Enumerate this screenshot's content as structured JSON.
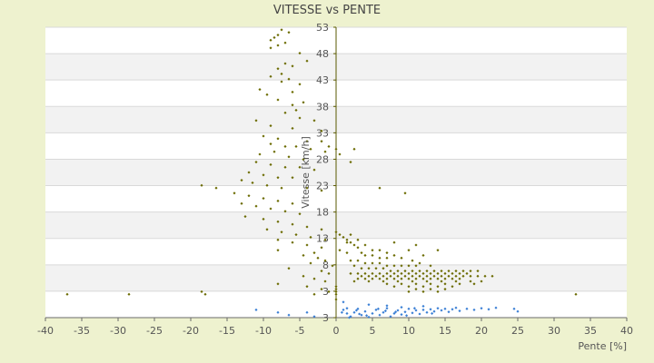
{
  "chart_data": {
    "type": "scatter",
    "title": "VITESSE vs PENTE",
    "xlabel": "Pente [%]",
    "ylabel": "Vitesse [km/h]",
    "xlim": [
      -40,
      40
    ],
    "ylim": [
      -2,
      54
    ],
    "x_ticks": [
      "-40",
      "-35",
      "-30",
      "-25",
      "-20",
      "-15",
      "-10",
      "-5",
      "0",
      "5",
      "10",
      "15",
      "20",
      "25",
      "30",
      "35",
      "40"
    ],
    "y_ticks": [
      "3",
      "3",
      "8",
      "13",
      "18",
      "23",
      "28",
      "33",
      "38",
      "43",
      "48",
      "53"
    ],
    "grid": true,
    "legend": "none",
    "colors": {
      "series_main": "#6b6b00",
      "series_neg": "#3a7fd5",
      "band": "#f2f2f2",
      "plot_bg": "#ffffff",
      "page_bg": "#eef2cf"
    },
    "series": [
      {
        "color": "series_main",
        "points": [
          [
            -37,
            2.5
          ],
          [
            -28.5,
            2.5
          ],
          [
            -18.5,
            3
          ],
          [
            -18,
            2.5
          ],
          [
            -7.5,
            53.5
          ],
          [
            -6.5,
            53
          ],
          [
            -8,
            52.5
          ],
          [
            -8.5,
            52
          ],
          [
            -9,
            51.5
          ],
          [
            -7,
            51
          ],
          [
            -8,
            50.5
          ],
          [
            -9,
            50
          ],
          [
            -5,
            49
          ],
          [
            -4,
            47.5
          ],
          [
            -7,
            47
          ],
          [
            -6,
            46.5
          ],
          [
            -8,
            46
          ],
          [
            -7.5,
            45
          ],
          [
            -9,
            44.5
          ],
          [
            -6.5,
            44
          ],
          [
            -7.5,
            43.5
          ],
          [
            -5,
            43
          ],
          [
            -10.5,
            42
          ],
          [
            -6,
            41.5
          ],
          [
            -9.5,
            41
          ],
          [
            -8,
            40
          ],
          [
            -4.5,
            39.5
          ],
          [
            -6,
            39
          ],
          [
            -5.5,
            38
          ],
          [
            -7,
            37.5
          ],
          [
            -11,
            36
          ],
          [
            -5,
            36.5
          ],
          [
            -3,
            36
          ],
          [
            -9,
            35
          ],
          [
            -6,
            34.5
          ],
          [
            -2,
            34
          ],
          [
            -10,
            33
          ],
          [
            -8,
            32.5
          ],
          [
            -4,
            32
          ],
          [
            -9,
            31.5
          ],
          [
            -7,
            31
          ],
          [
            -5.5,
            31
          ],
          [
            -3.5,
            30.5
          ],
          [
            -1.5,
            30
          ],
          [
            -8.5,
            30
          ],
          [
            -10.5,
            29.5
          ],
          [
            -6.5,
            29
          ],
          [
            -4.5,
            28.5
          ],
          [
            -11,
            28
          ],
          [
            -9,
            27.5
          ],
          [
            -7,
            27
          ],
          [
            -5,
            27
          ],
          [
            -3,
            26.5
          ],
          [
            -12,
            26
          ],
          [
            -10,
            25.5
          ],
          [
            -8,
            25
          ],
          [
            -6,
            25
          ],
          [
            -13,
            24.5
          ],
          [
            -11.5,
            24
          ],
          [
            -9.5,
            23.5
          ],
          [
            -7.5,
            23
          ],
          [
            -4,
            23
          ],
          [
            -2,
            22.5
          ],
          [
            -16.5,
            23
          ],
          [
            -18.5,
            23.5
          ],
          [
            -14,
            22
          ],
          [
            -12,
            21.5
          ],
          [
            -10,
            21
          ],
          [
            -8,
            20.5
          ],
          [
            -6,
            20
          ],
          [
            -13,
            20
          ],
          [
            -11,
            19.5
          ],
          [
            -9,
            19
          ],
          [
            -7,
            18.5
          ],
          [
            -5,
            18
          ],
          [
            -12.5,
            17.5
          ],
          [
            -10,
            17
          ],
          [
            -8,
            16.5
          ],
          [
            -6,
            16
          ],
          [
            -4,
            15.5
          ],
          [
            -2,
            15
          ],
          [
            -9.5,
            15
          ],
          [
            -7.5,
            14.5
          ],
          [
            -5.5,
            14
          ],
          [
            -3.5,
            13.5
          ],
          [
            -1.5,
            13
          ],
          [
            -8,
            13
          ],
          [
            -6,
            12.5
          ],
          [
            -4,
            12
          ],
          [
            -2,
            11.5
          ],
          [
            -8,
            11
          ],
          [
            -3,
            10.5
          ],
          [
            -4.5,
            10
          ],
          [
            -2.5,
            9.5
          ],
          [
            -1.5,
            9
          ],
          [
            -3.5,
            8.5
          ],
          [
            -0.5,
            8
          ],
          [
            -6.5,
            7.5
          ],
          [
            -2,
            7
          ],
          [
            -1,
            6.5
          ],
          [
            -4.5,
            6
          ],
          [
            -3,
            5.5
          ],
          [
            -1.5,
            5
          ],
          [
            -8,
            4.5
          ],
          [
            -4,
            4
          ],
          [
            -2,
            3.5
          ],
          [
            -1,
            3
          ],
          [
            -3,
            2.5
          ],
          [
            -2,
            32
          ],
          [
            -1,
            31
          ],
          [
            0,
            30.5
          ],
          [
            0.5,
            29.5
          ],
          [
            2.5,
            30.5
          ],
          [
            2,
            28
          ],
          [
            9.5,
            22
          ],
          [
            6,
            23
          ],
          [
            0,
            14.5
          ],
          [
            0.5,
            14
          ],
          [
            1,
            13.5
          ],
          [
            1.5,
            13
          ],
          [
            2,
            12.5
          ],
          [
            2.5,
            12
          ],
          [
            3,
            11.5
          ],
          [
            0.5,
            11
          ],
          [
            1.5,
            10.5
          ],
          [
            3.5,
            10.5
          ],
          [
            4,
            10
          ],
          [
            5,
            10
          ],
          [
            6,
            9.5
          ],
          [
            7,
            9.5
          ],
          [
            2,
            9
          ],
          [
            3,
            9
          ],
          [
            4,
            8.5
          ],
          [
            5,
            8.5
          ],
          [
            6,
            8.5
          ],
          [
            7,
            8
          ],
          [
            8,
            8
          ],
          [
            9,
            8
          ],
          [
            10,
            8
          ],
          [
            11,
            8
          ],
          [
            2.5,
            8
          ],
          [
            3.5,
            7.5
          ],
          [
            4.5,
            7.5
          ],
          [
            5.5,
            7.5
          ],
          [
            6.5,
            7.5
          ],
          [
            7.5,
            7
          ],
          [
            8.5,
            7
          ],
          [
            9.5,
            7
          ],
          [
            10.5,
            7
          ],
          [
            11.5,
            7
          ],
          [
            12.5,
            7
          ],
          [
            13.5,
            7
          ],
          [
            14.5,
            7
          ],
          [
            15.5,
            7
          ],
          [
            16.5,
            7
          ],
          [
            17.5,
            7
          ],
          [
            18.5,
            7
          ],
          [
            19.5,
            7
          ],
          [
            2,
            6.5
          ],
          [
            3,
            6.5
          ],
          [
            4,
            6.5
          ],
          [
            5,
            6.5
          ],
          [
            6,
            6.5
          ],
          [
            7,
            6.5
          ],
          [
            8,
            6.5
          ],
          [
            9,
            6.5
          ],
          [
            10,
            6.5
          ],
          [
            11,
            6.5
          ],
          [
            12,
            6.5
          ],
          [
            13,
            6.5
          ],
          [
            14,
            6.5
          ],
          [
            15,
            6.5
          ],
          [
            16,
            6.5
          ],
          [
            17,
            6.5
          ],
          [
            18,
            6.5
          ],
          [
            3.5,
            6
          ],
          [
            4.5,
            6
          ],
          [
            5.5,
            6
          ],
          [
            6.5,
            6
          ],
          [
            7.5,
            6
          ],
          [
            8.5,
            6
          ],
          [
            9.5,
            6
          ],
          [
            10.5,
            6
          ],
          [
            11.5,
            6
          ],
          [
            12.5,
            6
          ],
          [
            13.5,
            6
          ],
          [
            14.5,
            6
          ],
          [
            15.5,
            6
          ],
          [
            16.5,
            6
          ],
          [
            17.5,
            6
          ],
          [
            18.5,
            6
          ],
          [
            19.5,
            6
          ],
          [
            20.5,
            6
          ],
          [
            21.5,
            6
          ],
          [
            3,
            5.5
          ],
          [
            4,
            5.5
          ],
          [
            5,
            5.5
          ],
          [
            6,
            5.5
          ],
          [
            7,
            5.5
          ],
          [
            8,
            5.5
          ],
          [
            9,
            5.5
          ],
          [
            10,
            5.5
          ],
          [
            11,
            5.5
          ],
          [
            12,
            5.5
          ],
          [
            13,
            5.5
          ],
          [
            14,
            5.5
          ],
          [
            15,
            5.5
          ],
          [
            16,
            5.5
          ],
          [
            17,
            5.5
          ],
          [
            2.5,
            5
          ],
          [
            4.5,
            5
          ],
          [
            6.5,
            5
          ],
          [
            8.5,
            5
          ],
          [
            10.5,
            5
          ],
          [
            12.5,
            5
          ],
          [
            14.5,
            5
          ],
          [
            16.5,
            5
          ],
          [
            18.5,
            5
          ],
          [
            20,
            5
          ],
          [
            7,
            4.5
          ],
          [
            9,
            4.5
          ],
          [
            11,
            4.5
          ],
          [
            13,
            4.5
          ],
          [
            15,
            4.5
          ],
          [
            17,
            4.5
          ],
          [
            19,
            4.5
          ],
          [
            8,
            4
          ],
          [
            10,
            4
          ],
          [
            12,
            4
          ],
          [
            14,
            4
          ],
          [
            16,
            4
          ],
          [
            11,
            3.5
          ],
          [
            13,
            3.5
          ],
          [
            15,
            3.5
          ],
          [
            10,
            3
          ],
          [
            12,
            3
          ],
          [
            14,
            3
          ],
          [
            1.5,
            12.5
          ],
          [
            5,
            11
          ],
          [
            6,
            11
          ],
          [
            7,
            10.5
          ],
          [
            8,
            10
          ],
          [
            9,
            9.5
          ],
          [
            10.5,
            9
          ],
          [
            11.5,
            8.5
          ],
          [
            13,
            8
          ],
          [
            4,
            12
          ],
          [
            3,
            13
          ],
          [
            2,
            14
          ],
          [
            10,
            11
          ],
          [
            11,
            12
          ],
          [
            14,
            11
          ],
          [
            8,
            12.5
          ],
          [
            12,
            10
          ],
          [
            33,
            2.5
          ],
          [
            0,
            2.5
          ],
          [
            0,
            3
          ],
          [
            0,
            3.5
          ],
          [
            0,
            4
          ],
          [
            0,
            1.5
          ]
        ]
      },
      {
        "color": "series_neg",
        "points": [
          [
            -11,
            -0.5
          ],
          [
            -8,
            -1
          ],
          [
            -6.5,
            -1.5
          ],
          [
            -4,
            -1
          ],
          [
            -3,
            -1.8
          ],
          [
            1,
            -0.5
          ],
          [
            1.5,
            -1.2
          ],
          [
            2,
            -1.8
          ],
          [
            2.5,
            -1
          ],
          [
            3,
            -0.3
          ],
          [
            3.5,
            -1.5
          ],
          [
            4,
            -0.8
          ],
          [
            4.5,
            -1.9
          ],
          [
            5,
            -1.2
          ],
          [
            5.5,
            -0.5
          ],
          [
            6,
            -1.5
          ],
          [
            6.5,
            -1
          ],
          [
            7,
            -0.2
          ],
          [
            7.5,
            -1.8
          ],
          [
            8,
            -1.2
          ],
          [
            8.5,
            -0.6
          ],
          [
            9,
            -1.4
          ],
          [
            9.5,
            -0.9
          ],
          [
            10,
            -0.3
          ],
          [
            10.5,
            -1.1
          ],
          [
            11,
            -0.6
          ],
          [
            11.5,
            -1.3
          ],
          [
            12,
            -0.5
          ],
          [
            12.5,
            -1
          ],
          [
            13,
            -0.4
          ],
          [
            13.5,
            -0.8
          ],
          [
            14,
            -0.2
          ],
          [
            14.5,
            -0.6
          ],
          [
            15,
            -0.3
          ],
          [
            15.5,
            -0.9
          ],
          [
            16,
            -0.4
          ],
          [
            16.5,
            -0.1
          ],
          [
            17,
            -0.7
          ],
          [
            18,
            -0.3
          ],
          [
            19,
            -0.5
          ],
          [
            20,
            -0.2
          ],
          [
            21,
            -0.4
          ],
          [
            22,
            -0.1
          ],
          [
            24.5,
            -0.3
          ],
          [
            25,
            -0.8
          ],
          [
            1,
            1
          ],
          [
            4.5,
            0.5
          ],
          [
            7,
            0.3
          ],
          [
            9,
            0
          ],
          [
            12,
            0.2
          ],
          [
            1.5,
            -0.2
          ],
          [
            2.8,
            -0.6
          ],
          [
            5.8,
            -0.3
          ],
          [
            8.2,
            -0.9
          ],
          [
            10.8,
            -0.2
          ],
          [
            13.2,
            -1.2
          ],
          [
            3.2,
            -1.3
          ],
          [
            6.8,
            -0.7
          ],
          [
            9.7,
            -1.6
          ],
          [
            0.8,
            -1
          ],
          [
            1.8,
            -2
          ],
          [
            4.2,
            -1.6
          ]
        ]
      }
    ]
  }
}
